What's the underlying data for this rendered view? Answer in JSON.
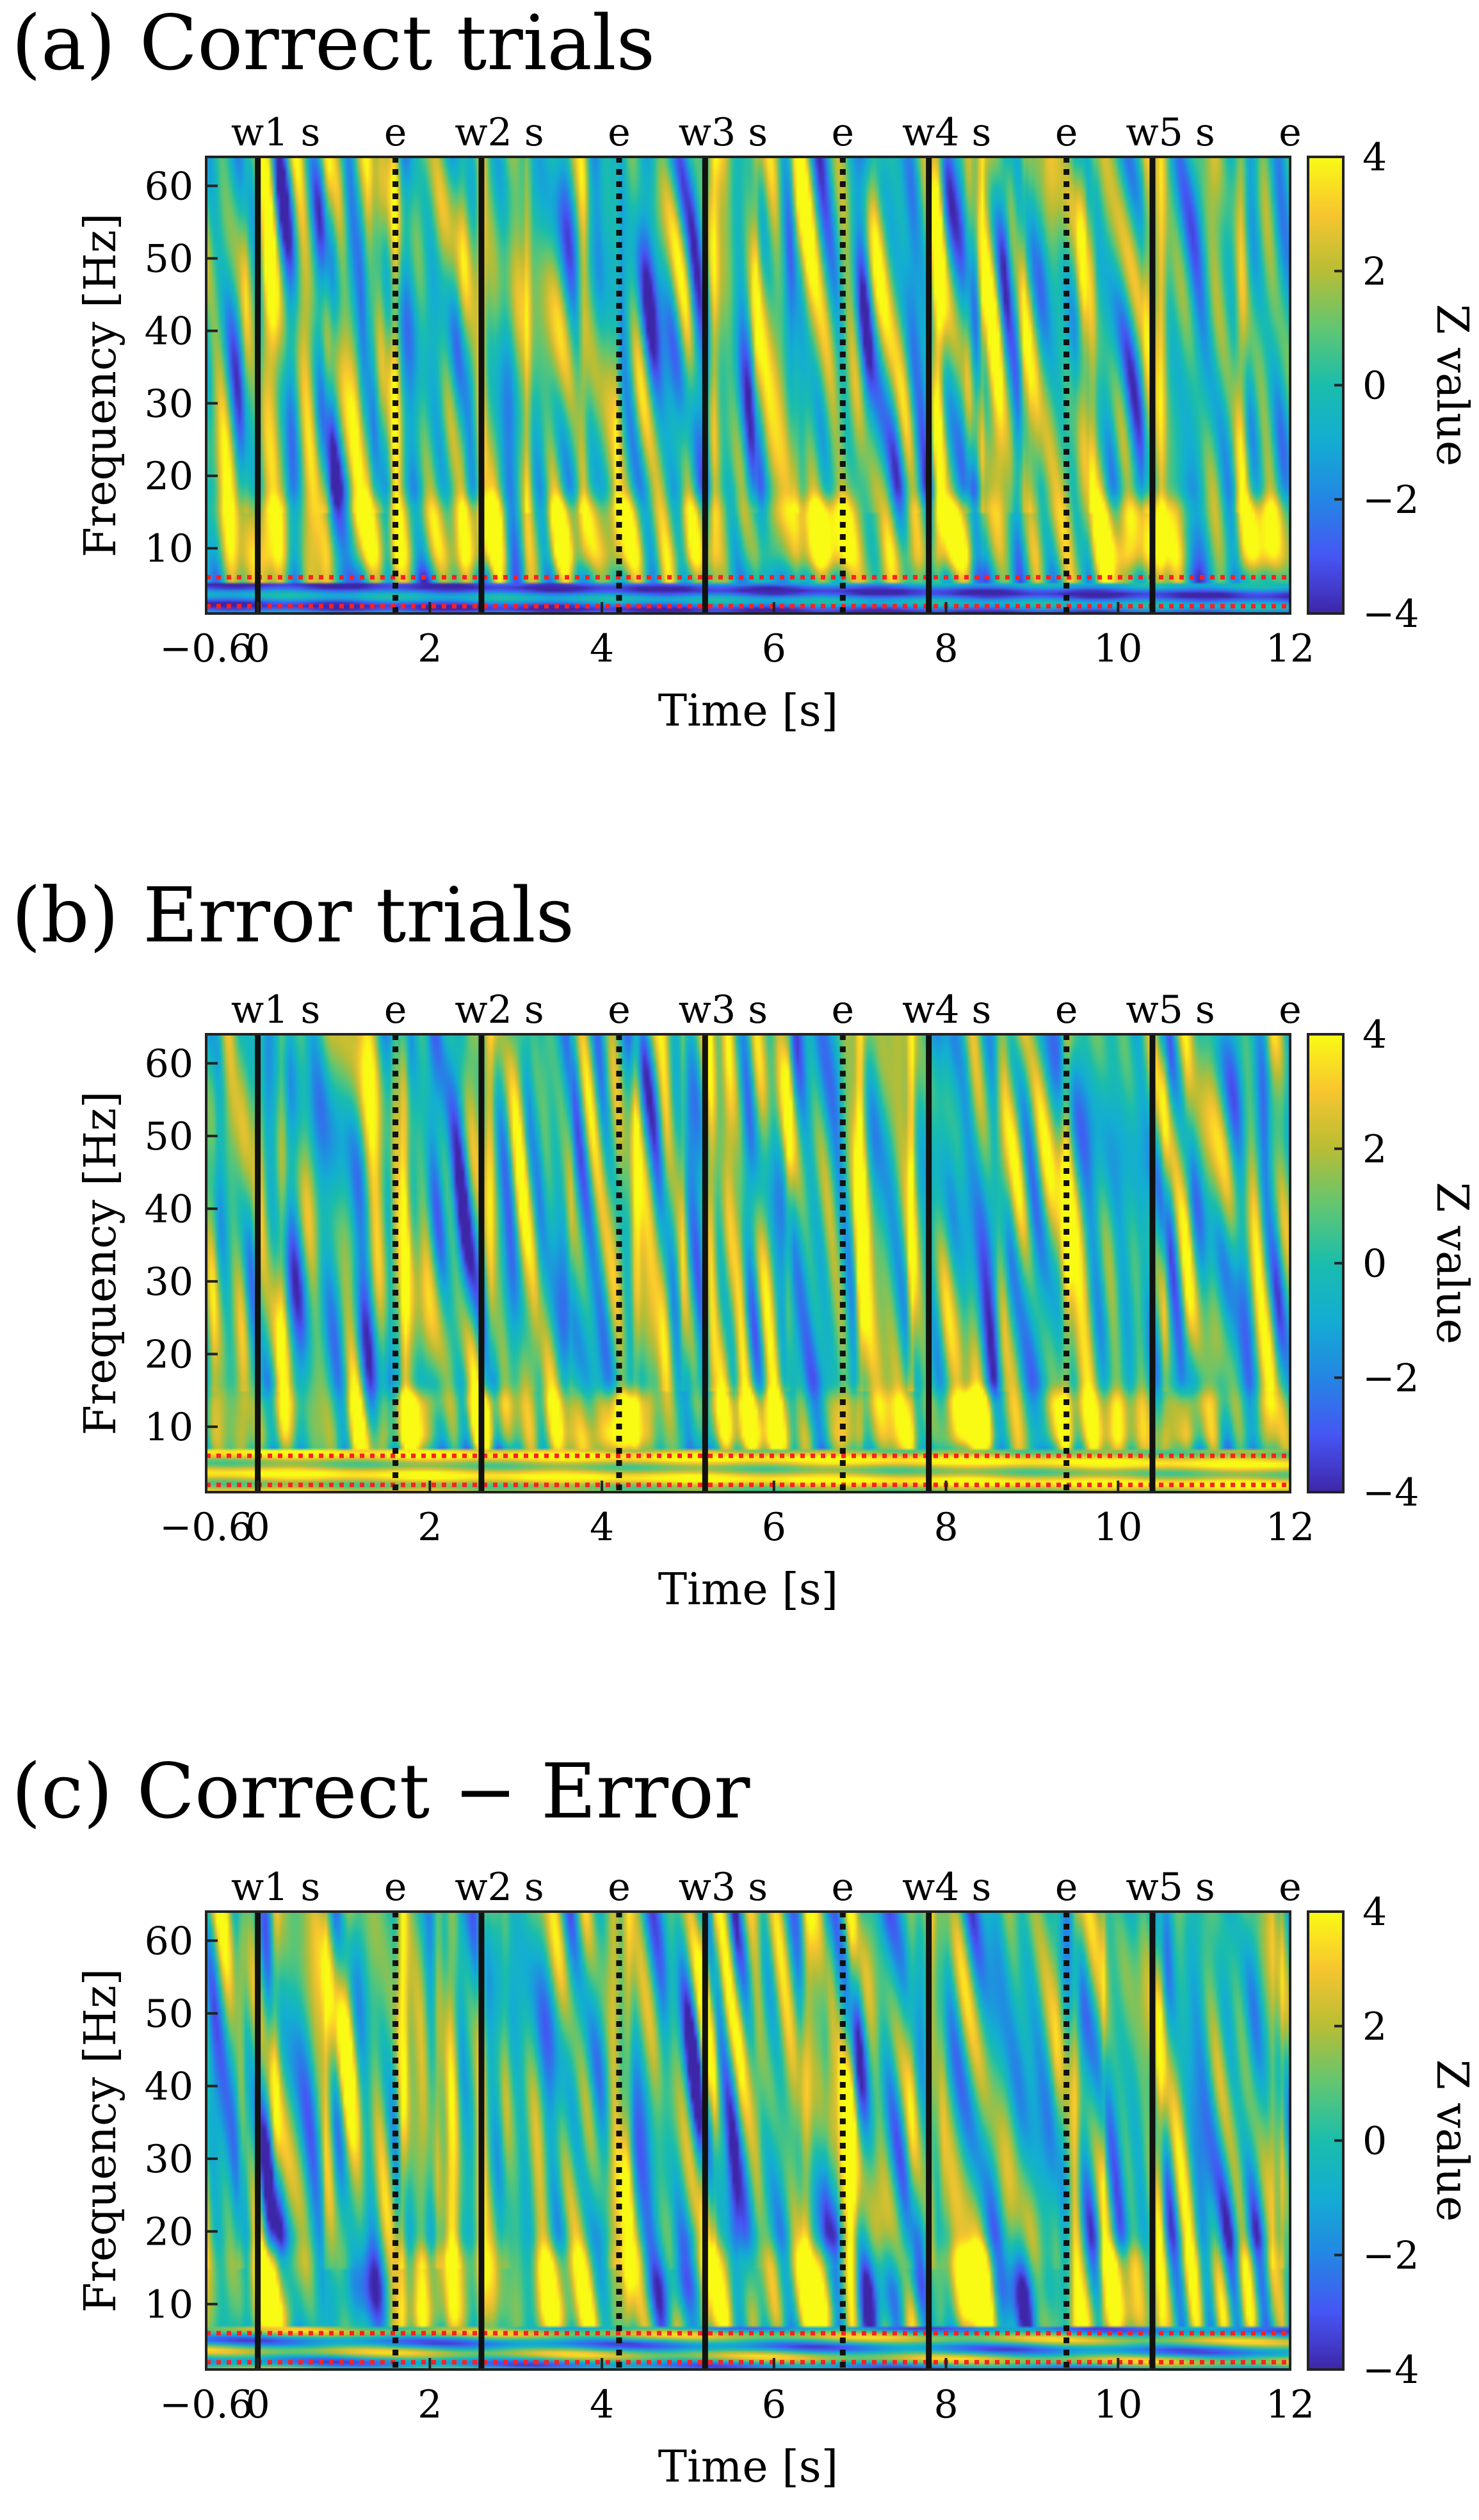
{
  "panels": [
    {
      "id": "a",
      "title": "(a) Correct trials",
      "chart_data": {
        "type": "heatmap",
        "title": "(a) Correct trials",
        "xlabel": "Time [s]",
        "ylabel": "Frequency [Hz]",
        "colorbar_label": "Z value",
        "xlim": [
          -0.6,
          12
        ],
        "ylim": [
          1,
          64
        ],
        "clim": [
          -4,
          4
        ],
        "xticks": [
          -0.6,
          0,
          2,
          4,
          6,
          8,
          10,
          12
        ],
        "xtick_labels": [
          "−0.6",
          "0",
          "2",
          "4",
          "6",
          "8",
          "10",
          "12"
        ],
        "yticks": [
          10,
          20,
          30,
          40,
          50,
          60
        ],
        "ytick_labels": [
          "10",
          "20",
          "30",
          "40",
          "50",
          "60"
        ],
        "cticks": [
          -4,
          -2,
          0,
          2,
          4
        ],
        "ctick_labels": [
          "−4",
          "−2",
          "0",
          "2",
          "4"
        ],
        "colormap": "parula",
        "event_markers": [
          {
            "label": "w1 s",
            "time": 0.0,
            "style": "solid"
          },
          {
            "label": "e",
            "time": 1.6,
            "style": "dotted"
          },
          {
            "label": "w2 s",
            "time": 2.6,
            "style": "solid"
          },
          {
            "label": "e",
            "time": 4.2,
            "style": "dotted"
          },
          {
            "label": "w3 s",
            "time": 5.2,
            "style": "solid"
          },
          {
            "label": "e",
            "time": 6.8,
            "style": "dotted"
          },
          {
            "label": "w4 s",
            "time": 7.8,
            "style": "solid"
          },
          {
            "label": "e",
            "time": 9.4,
            "style": "dotted"
          },
          {
            "label": "w5 s",
            "time": 10.4,
            "style": "solid"
          },
          {
            "label": "e",
            "time": 12.0,
            "style": "none"
          }
        ],
        "frequency_band_lines": [
          {
            "frequency": 2,
            "color": "#ff2020"
          },
          {
            "frequency": 6,
            "color": "#ff2020"
          }
        ],
        "features": {
          "low_band": {
            "fmin": 1,
            "fmax": 5,
            "pattern": "negative"
          },
          "alpha_beta_band": {
            "fmin": 7,
            "fmax": 17,
            "level": 2.8,
            "peak_times": [
              1.3,
              2.6,
              3.7,
              5.2,
              6.6,
              8.0,
              10.4,
              11.6
            ]
          },
          "vertical_streaks": [
            0.1,
            1.6,
            2.6,
            5.3,
            7.9,
            9.6,
            10.5
          ]
        }
      }
    },
    {
      "id": "b",
      "title": "(b) Error trials",
      "chart_data": {
        "type": "heatmap",
        "title": "(b) Error trials",
        "xlabel": "Time [s]",
        "ylabel": "Frequency [Hz]",
        "colorbar_label": "Z value",
        "xlim": [
          -0.6,
          12
        ],
        "ylim": [
          1,
          64
        ],
        "clim": [
          -4,
          4
        ],
        "xticks": [
          -0.6,
          0,
          2,
          4,
          6,
          8,
          10,
          12
        ],
        "xtick_labels": [
          "−0.6",
          "0",
          "2",
          "4",
          "6",
          "8",
          "10",
          "12"
        ],
        "yticks": [
          10,
          20,
          30,
          40,
          50,
          60
        ],
        "ytick_labels": [
          "10",
          "20",
          "30",
          "40",
          "50",
          "60"
        ],
        "cticks": [
          -4,
          -2,
          0,
          2,
          4
        ],
        "ctick_labels": [
          "−4",
          "−2",
          "0",
          "2",
          "4"
        ],
        "colormap": "parula",
        "event_markers": [
          {
            "label": "w1 s",
            "time": 0.0,
            "style": "solid"
          },
          {
            "label": "e",
            "time": 1.6,
            "style": "dotted"
          },
          {
            "label": "w2 s",
            "time": 2.6,
            "style": "solid"
          },
          {
            "label": "e",
            "time": 4.2,
            "style": "dotted"
          },
          {
            "label": "w3 s",
            "time": 5.2,
            "style": "solid"
          },
          {
            "label": "e",
            "time": 6.8,
            "style": "dotted"
          },
          {
            "label": "w4 s",
            "time": 7.8,
            "style": "solid"
          },
          {
            "label": "e",
            "time": 9.4,
            "style": "dotted"
          },
          {
            "label": "w5 s",
            "time": 10.4,
            "style": "solid"
          },
          {
            "label": "e",
            "time": 12.0,
            "style": "none"
          }
        ],
        "frequency_band_lines": [
          {
            "frequency": 2,
            "color": "#ff2020"
          },
          {
            "frequency": 6,
            "color": "#ff2020"
          }
        ],
        "features": {
          "low_band": {
            "fmin": 1,
            "fmax": 7,
            "pattern": "positive"
          },
          "alpha_beta_band": {
            "fmin": 7,
            "fmax": 15,
            "level": 3.0,
            "peak_times": [
              1.7,
              2.8,
              4.3,
              5.5,
              7.1,
              8.3,
              9.4,
              11.0
            ]
          },
          "vertical_streaks": [
            1.7,
            2.7,
            4.4,
            7.0,
            9.4
          ]
        }
      }
    },
    {
      "id": "c",
      "title": "(c) Correct − Error",
      "chart_data": {
        "type": "heatmap",
        "title": "(c) Correct − Error",
        "xlabel": "Time [s]",
        "ylabel": "Frequency [Hz]",
        "colorbar_label": "Z value",
        "xlim": [
          -0.6,
          12
        ],
        "ylim": [
          1,
          64
        ],
        "clim": [
          -4,
          4
        ],
        "xticks": [
          -0.6,
          0,
          2,
          4,
          6,
          8,
          10,
          12
        ],
        "xtick_labels": [
          "−0.6",
          "0",
          "2",
          "4",
          "6",
          "8",
          "10",
          "12"
        ],
        "yticks": [
          10,
          20,
          30,
          40,
          50,
          60
        ],
        "ytick_labels": [
          "10",
          "20",
          "30",
          "40",
          "50",
          "60"
        ],
        "cticks": [
          -4,
          -2,
          0,
          2,
          4
        ],
        "ctick_labels": [
          "−4",
          "−2",
          "0",
          "2",
          "4"
        ],
        "colormap": "parula",
        "event_markers": [
          {
            "label": "w1 s",
            "time": 0.0,
            "style": "solid"
          },
          {
            "label": "e",
            "time": 1.6,
            "style": "dotted"
          },
          {
            "label": "w2 s",
            "time": 2.6,
            "style": "solid"
          },
          {
            "label": "e",
            "time": 4.2,
            "style": "dotted"
          },
          {
            "label": "w3 s",
            "time": 5.2,
            "style": "solid"
          },
          {
            "label": "e",
            "time": 6.8,
            "style": "dotted"
          },
          {
            "label": "w4 s",
            "time": 7.8,
            "style": "solid"
          },
          {
            "label": "e",
            "time": 9.4,
            "style": "dotted"
          },
          {
            "label": "w5 s",
            "time": 10.4,
            "style": "solid"
          },
          {
            "label": "e",
            "time": 12.0,
            "style": "none"
          }
        ],
        "frequency_band_lines": [
          {
            "frequency": 2,
            "color": "#ff2020"
          },
          {
            "frequency": 6,
            "color": "#ff2020"
          }
        ],
        "features": {
          "low_band": {
            "fmin": 1,
            "fmax": 7,
            "pattern": "mixed"
          },
          "alpha_beta_band": {
            "fmin": 6,
            "fmax": 18,
            "level": 2.5,
            "peak_times": [
              0.3,
              2.2,
              3.4,
              5.3,
              6.6,
              8.2,
              10.0,
              11.4
            ]
          },
          "negative_blobs": [
            1.2,
            4.8,
            7.4,
            9.0
          ],
          "vertical_streaks": [
            0.2,
            1.7,
            2.6,
            4.3,
            5.2,
            6.9,
            9.5,
            10.5
          ]
        }
      }
    }
  ]
}
